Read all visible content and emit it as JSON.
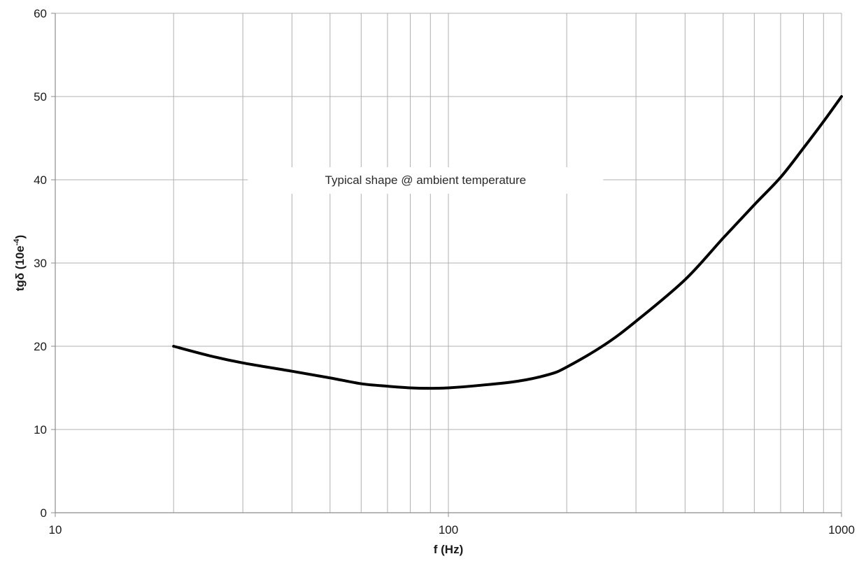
{
  "chart_data": {
    "type": "line",
    "xscale": "log",
    "xlim": [
      10,
      1000
    ],
    "ylim": [
      0,
      60
    ],
    "xticks": [
      10,
      100,
      1000
    ],
    "xtick_labels": [
      "10",
      "100",
      "1000"
    ],
    "yticks": [
      0,
      10,
      20,
      30,
      40,
      50,
      60
    ],
    "ytick_labels": [
      "0",
      "10",
      "20",
      "30",
      "40",
      "50",
      "60"
    ],
    "xlabel": "f (Hz)",
    "ylabel_main": "tgδ  (10e",
    "ylabel_sup": "-4",
    "ylabel_end": ")",
    "annotation": "Typical shape @  ambient temperature",
    "grid": true,
    "colors": {
      "line": "#000000",
      "grid": "#b0b0b0",
      "axis": "#8c8c8c"
    },
    "series": [
      {
        "x": [
          20,
          25,
          30,
          40,
          50,
          60,
          70,
          80,
          90,
          100,
          120,
          150,
          180,
          200,
          250,
          300,
          400,
          500,
          600,
          700,
          800,
          900,
          1000
        ],
        "y": [
          20,
          18.8,
          18,
          17,
          16.2,
          15.5,
          15.2,
          15,
          14.95,
          15,
          15.3,
          15.8,
          16.6,
          17.5,
          20.2,
          23,
          28,
          33,
          37,
          40.3,
          43.8,
          47,
          50
        ]
      }
    ]
  }
}
